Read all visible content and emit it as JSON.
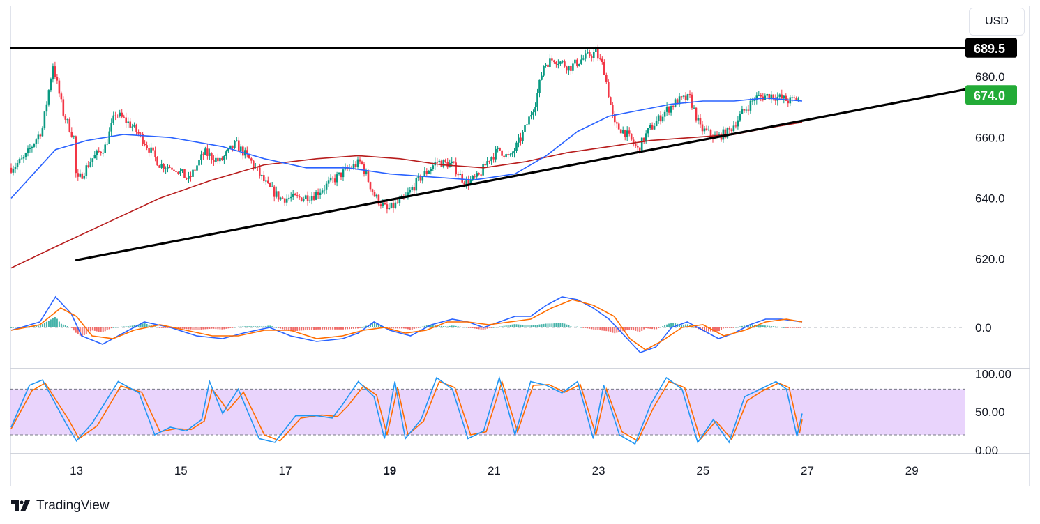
{
  "header": {
    "currency": "USD"
  },
  "brand": {
    "name": "TradingView"
  },
  "colors": {
    "up": "#089981",
    "down": "#f23645",
    "ma_blue": "#2962ff",
    "ma_red": "#b71c1c",
    "trend": "#000000",
    "price_badge": "#22ab37",
    "level_badge": "#000000",
    "macd_line": "#2962ff",
    "signal_line": "#ff6d00",
    "hist_up": "#26a69a",
    "hist_down": "#ef5350",
    "stoch_k": "#2196f3",
    "stoch_d": "#ff6d00",
    "stoch_band": "#e1c5fb"
  },
  "chart_data": [
    {
      "type": "candlestick",
      "panel": "price",
      "yticks": [
        620.0,
        640.0,
        660.0,
        680.0
      ],
      "ylabels": [
        "620.0",
        "640.0",
        "660.0",
        "680.0"
      ],
      "ylim": [
        613,
        703
      ],
      "xticks": [
        13,
        15,
        17,
        19,
        21,
        23,
        25,
        27,
        29
      ],
      "xlabels": [
        "13",
        "15",
        "17",
        "19",
        "21",
        "23",
        "25",
        "27",
        "29"
      ],
      "xbold": [
        "19"
      ],
      "xlim": [
        11.75,
        30.0
      ],
      "resistance": {
        "value": 689.5,
        "label": "689.5"
      },
      "last_price": {
        "value": 674.0,
        "label": "674.0"
      },
      "trendline": {
        "x": [
          13.0,
          30.3
        ],
        "y": [
          619.6,
          675.8
        ]
      },
      "anchors": [
        [
          11.75,
          650
        ],
        [
          12.0,
          653
        ],
        [
          12.35,
          663
        ],
        [
          12.55,
          684
        ],
        [
          12.75,
          668
        ],
        [
          12.95,
          660
        ],
        [
          13.0,
          645
        ],
        [
          13.3,
          653
        ],
        [
          13.55,
          657
        ],
        [
          13.75,
          668
        ],
        [
          14.05,
          664
        ],
        [
          14.25,
          660
        ],
        [
          14.6,
          651
        ],
        [
          14.9,
          650
        ],
        [
          15.15,
          646
        ],
        [
          15.45,
          655
        ],
        [
          15.75,
          652
        ],
        [
          16.05,
          658
        ],
        [
          16.35,
          652
        ],
        [
          16.65,
          644
        ],
        [
          16.9,
          640
        ],
        [
          17.25,
          640
        ],
        [
          17.55,
          641
        ],
        [
          17.85,
          645
        ],
        [
          18.15,
          649
        ],
        [
          18.45,
          652
        ],
        [
          18.7,
          641
        ],
        [
          18.95,
          636
        ],
        [
          19.3,
          640
        ],
        [
          19.55,
          646
        ],
        [
          19.9,
          652
        ],
        [
          20.2,
          651
        ],
        [
          20.45,
          645
        ],
        [
          20.7,
          647
        ],
        [
          20.9,
          653
        ],
        [
          21.1,
          656
        ],
        [
          21.3,
          653
        ],
        [
          21.55,
          661
        ],
        [
          21.8,
          672
        ],
        [
          21.95,
          684
        ],
        [
          22.15,
          686
        ],
        [
          22.45,
          683
        ],
        [
          22.7,
          686
        ],
        [
          22.95,
          688
        ],
        [
          23.1,
          683
        ],
        [
          23.3,
          664
        ],
        [
          23.5,
          662
        ],
        [
          23.75,
          656
        ],
        [
          23.95,
          662
        ],
        [
          24.25,
          668
        ],
        [
          24.5,
          672
        ],
        [
          24.75,
          673
        ],
        [
          24.95,
          663
        ],
        [
          25.25,
          660
        ],
        [
          25.5,
          662
        ],
        [
          25.75,
          668
        ],
        [
          26.0,
          673
        ],
        [
          26.3,
          674
        ],
        [
          26.65,
          672
        ],
        [
          26.85,
          673
        ]
      ],
      "series": [
        {
          "name": "MA fast",
          "x": [
            11.75,
            12.6,
            13.2,
            13.9,
            14.8,
            15.8,
            16.6,
            17.4,
            18.2,
            19.0,
            19.8,
            20.6,
            21.4,
            22.0,
            22.6,
            23.2,
            23.8,
            24.4,
            25.0,
            25.6,
            26.2,
            26.9
          ],
          "y": [
            640,
            656,
            659,
            661,
            660,
            657,
            653,
            650,
            650,
            648,
            647,
            646,
            648,
            654,
            662,
            667,
            669,
            671,
            672,
            672,
            673,
            672
          ]
        },
        {
          "name": "MA slow",
          "x": [
            11.75,
            12.6,
            13.6,
            14.6,
            15.6,
            16.6,
            17.6,
            18.4,
            19.2,
            20.0,
            20.8,
            21.6,
            22.4,
            23.2,
            24.0,
            24.8,
            25.6,
            26.2,
            26.9
          ],
          "y": [
            617,
            624,
            632,
            640,
            646,
            651,
            653,
            654,
            653,
            651,
            650,
            652,
            655,
            657,
            659,
            660,
            661,
            663,
            665
          ]
        }
      ]
    },
    {
      "type": "macd",
      "panel": "macd",
      "yticks": [
        0.0
      ],
      "ylabels": [
        "0.0"
      ],
      "ylim": [
        -14,
        16
      ],
      "macd": {
        "x": [
          11.75,
          12.3,
          12.6,
          12.9,
          13.1,
          13.5,
          13.9,
          14.3,
          14.8,
          15.3,
          15.8,
          16.2,
          16.7,
          17.1,
          17.6,
          18.1,
          18.4,
          18.7,
          19.0,
          19.4,
          19.8,
          20.2,
          20.5,
          20.8,
          21.1,
          21.4,
          21.7,
          22.0,
          22.3,
          22.6,
          22.9,
          23.2,
          23.5,
          23.8,
          24.1,
          24.4,
          24.7,
          25.0,
          25.3,
          25.6,
          25.9,
          26.2,
          26.5,
          26.9
        ],
        "y": [
          -1,
          2,
          11,
          5,
          -3,
          -6,
          -2,
          2,
          0,
          -3,
          -4,
          -2,
          0,
          -3,
          -5,
          -4,
          -2,
          2,
          -1,
          -3,
          1,
          3,
          2,
          0,
          2,
          4,
          4,
          8,
          11,
          10,
          7,
          3,
          -3,
          -9,
          -7,
          0,
          2,
          -1,
          -4,
          -2,
          1,
          3,
          3,
          2
        ]
      },
      "signal": {
        "x": [
          11.75,
          12.3,
          12.7,
          13.0,
          13.3,
          13.7,
          14.1,
          14.6,
          15.1,
          15.6,
          16.1,
          16.6,
          17.1,
          17.6,
          18.1,
          18.5,
          18.9,
          19.3,
          19.7,
          20.1,
          20.5,
          20.9,
          21.3,
          21.7,
          22.1,
          22.5,
          22.9,
          23.3,
          23.6,
          23.9,
          24.2,
          24.6,
          25.0,
          25.4,
          25.8,
          26.2,
          26.6,
          26.9
        ],
        "y": [
          -1,
          1,
          7,
          4,
          -3,
          -4,
          -1,
          1,
          -1,
          -3,
          -3,
          -1,
          -1,
          -4,
          -3,
          -1,
          0,
          -2,
          -1,
          2,
          2,
          1,
          2,
          3,
          7,
          10,
          8,
          4,
          -4,
          -8,
          -5,
          0,
          1,
          -3,
          -1,
          2,
          3,
          2
        ]
      }
    },
    {
      "type": "stochastic",
      "panel": "stoch",
      "yticks": [
        0.0,
        50.0,
        100.0
      ],
      "ylabels": [
        "0.00",
        "50.00",
        "100.00"
      ],
      "ylim": [
        -2,
        106
      ],
      "band": [
        20,
        80
      ],
      "k": {
        "x": [
          11.75,
          12.1,
          12.35,
          12.8,
          13.0,
          13.3,
          13.8,
          14.2,
          14.5,
          14.8,
          15.1,
          15.4,
          15.55,
          15.8,
          16.1,
          16.5,
          16.8,
          17.2,
          17.6,
          17.9,
          18.1,
          18.4,
          18.7,
          18.9,
          19.1,
          19.3,
          19.6,
          19.9,
          20.2,
          20.5,
          20.8,
          21.1,
          21.4,
          21.7,
          22.0,
          22.3,
          22.6,
          22.9,
          23.1,
          23.4,
          23.7,
          24.0,
          24.3,
          24.6,
          24.9,
          25.2,
          25.5,
          25.8,
          26.1,
          26.4,
          26.6,
          26.8,
          26.9
        ],
        "y": [
          30,
          85,
          92,
          35,
          12,
          35,
          90,
          75,
          20,
          30,
          25,
          40,
          90,
          48,
          80,
          15,
          10,
          45,
          45,
          42,
          60,
          90,
          70,
          15,
          90,
          15,
          40,
          95,
          80,
          15,
          25,
          95,
          20,
          90,
          85,
          75,
          90,
          15,
          85,
          20,
          8,
          60,
          95,
          80,
          10,
          40,
          10,
          70,
          80,
          90,
          80,
          18,
          48
        ]
      },
      "d": {
        "x": [
          11.75,
          12.15,
          12.4,
          12.85,
          13.05,
          13.4,
          13.85,
          14.25,
          14.6,
          14.9,
          15.2,
          15.45,
          15.6,
          15.9,
          16.2,
          16.6,
          16.9,
          17.3,
          17.7,
          18.0,
          18.2,
          18.5,
          18.75,
          18.95,
          19.15,
          19.35,
          19.65,
          19.95,
          20.25,
          20.55,
          20.85,
          21.15,
          21.45,
          21.75,
          22.05,
          22.35,
          22.65,
          22.95,
          23.15,
          23.45,
          23.75,
          24.05,
          24.35,
          24.65,
          24.95,
          25.25,
          25.55,
          25.85,
          26.15,
          26.45,
          26.65,
          26.85,
          26.9
        ],
        "y": [
          28,
          78,
          88,
          40,
          15,
          32,
          84,
          76,
          24,
          28,
          27,
          38,
          80,
          52,
          76,
          20,
          12,
          42,
          46,
          44,
          58,
          84,
          72,
          20,
          82,
          20,
          38,
          90,
          82,
          20,
          24,
          90,
          24,
          85,
          86,
          76,
          86,
          20,
          80,
          24,
          12,
          55,
          90,
          82,
          14,
          38,
          14,
          65,
          78,
          88,
          82,
          22,
          40
        ]
      }
    }
  ]
}
